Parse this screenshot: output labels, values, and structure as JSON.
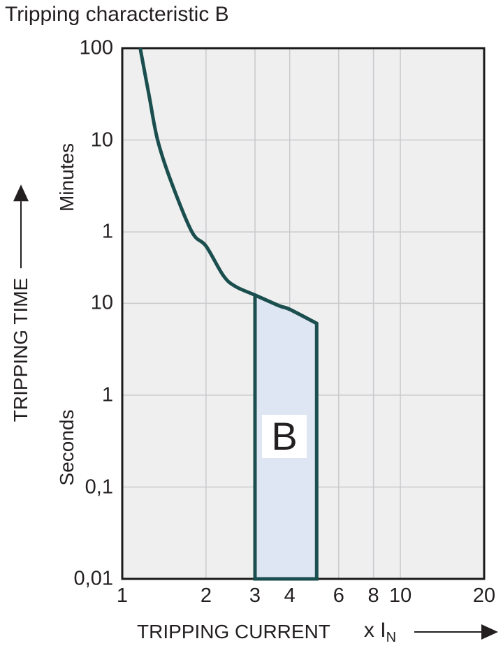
{
  "title": "Tripping characteristic B",
  "colors": {
    "text": "#231F20",
    "curve": "#1B4E4E",
    "region_fill": "#DEE5F3",
    "plot_bg": "#EFEFF0",
    "grid": "#C9CACD",
    "border": "#1A1A1A",
    "region_label_bg": "#FFFFFF"
  },
  "chart_data": {
    "type": "line",
    "title": "Tripping characteristic B",
    "x_axis": {
      "label": "TRIPPING CURRENT",
      "unit_prefix": "x I",
      "unit_sub": "N",
      "scale": "log",
      "min": 1,
      "max": 20,
      "ticks": [
        {
          "label": "1",
          "value": 1
        },
        {
          "label": "2",
          "value": 2
        },
        {
          "label": "3",
          "value": 3
        },
        {
          "label": "4",
          "value": 4
        },
        {
          "label": "6",
          "value": 6
        },
        {
          "label": "8",
          "value": 8
        },
        {
          "label": "10",
          "value": 10
        },
        {
          "label": "20",
          "value": 20
        }
      ],
      "gridlines": [
        2,
        3,
        4,
        6,
        8,
        10
      ]
    },
    "y_axis": {
      "label": "TRIPPING TIME",
      "scale": "log",
      "unit_labels": [
        "Minutes",
        "Seconds"
      ],
      "min_seconds": 0.01,
      "max_seconds": 6000,
      "ticks": [
        {
          "label": "100",
          "seconds": 6000
        },
        {
          "label": "10",
          "seconds": 600
        },
        {
          "label": "1",
          "seconds": 60
        },
        {
          "label": "10",
          "seconds": 10
        },
        {
          "label": "1",
          "seconds": 1
        },
        {
          "label": "0,1",
          "seconds": 0.1
        },
        {
          "label": "0,01",
          "seconds": 0.01
        }
      ],
      "gridlines_seconds": [
        600,
        60,
        10,
        1,
        0.1
      ]
    },
    "series": [
      {
        "name": "trip-curve",
        "points": [
          [
            1.16,
            6000
          ],
          [
            1.25,
            1800
          ],
          [
            1.34,
            600
          ],
          [
            1.5,
            210
          ],
          [
            1.78,
            60
          ],
          [
            2.0,
            42
          ],
          [
            2.31,
            20
          ],
          [
            2.55,
            15.3
          ],
          [
            3.0,
            12.3
          ],
          [
            3.67,
            9.4
          ],
          [
            4.0,
            8.6
          ],
          [
            5.0,
            6.05
          ]
        ]
      }
    ],
    "region": {
      "label": "B",
      "x_from": 3,
      "x_to": 5,
      "bottom_seconds": 0.01
    }
  }
}
